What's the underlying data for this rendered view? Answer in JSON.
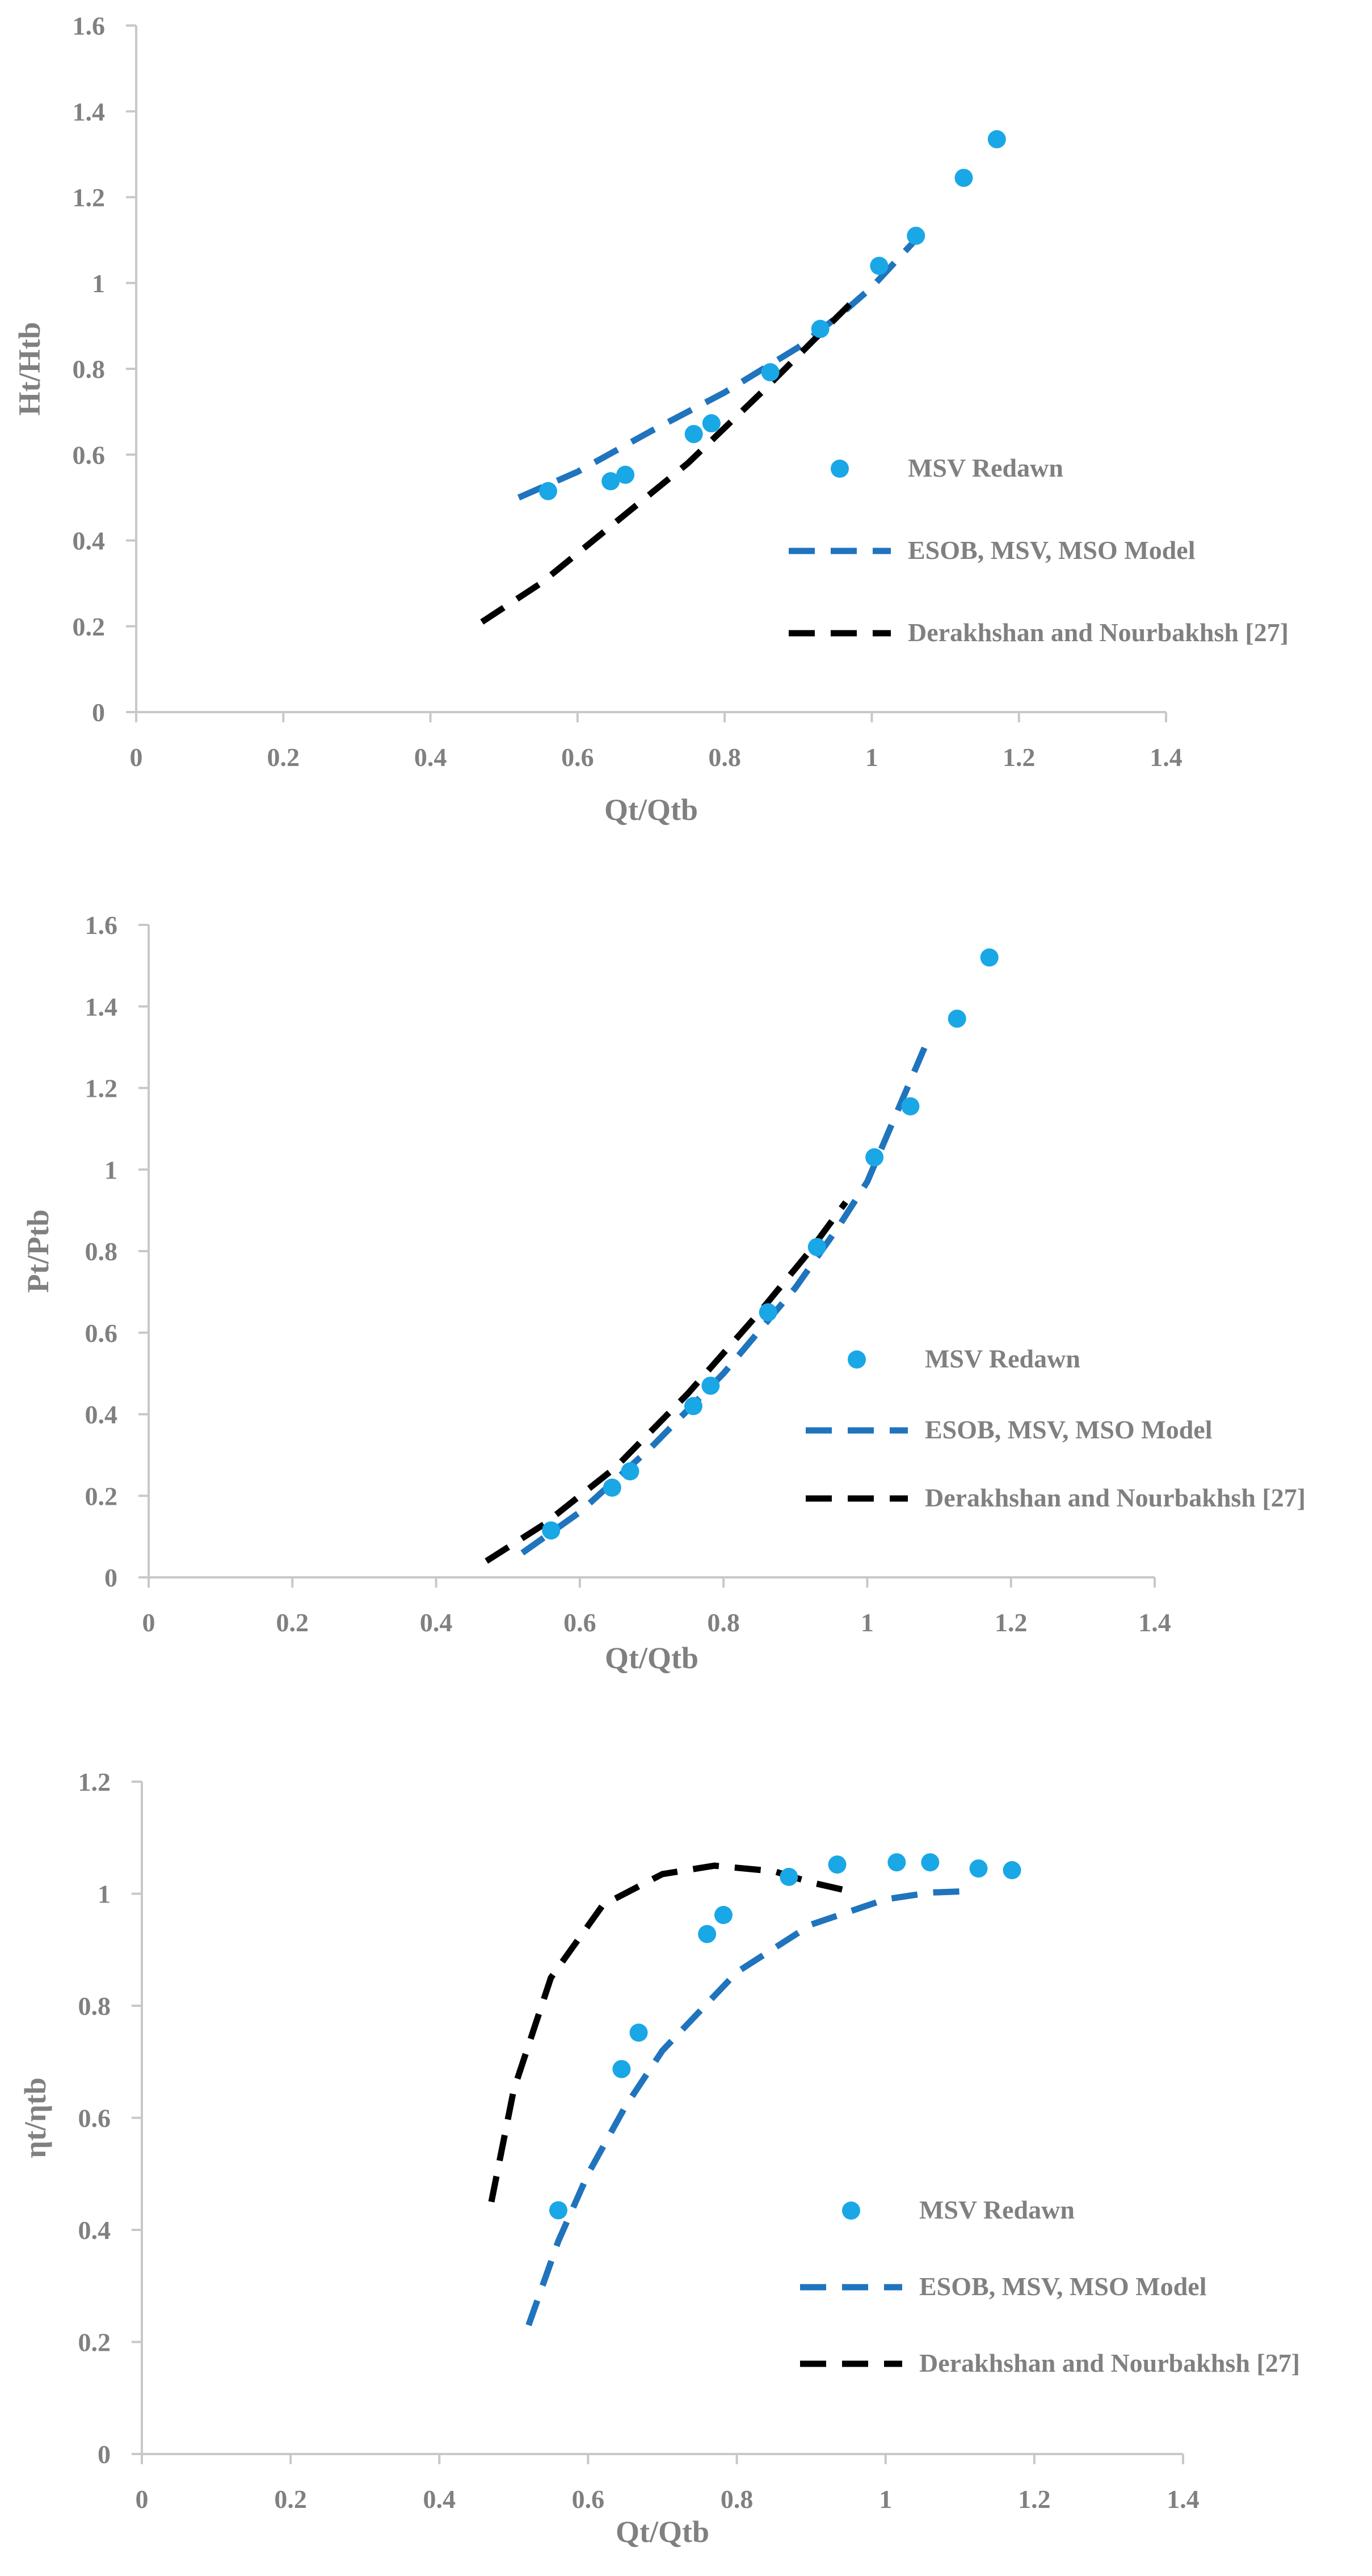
{
  "colors": {
    "points": "#1AA7E6",
    "model_line": "#1F74BD",
    "reference_line": "#000000",
    "axis": "#c8c8c8",
    "text": "#808080"
  },
  "legend": {
    "points": "MSV Redawn",
    "model": "ESOB, MSV, MSO Model",
    "reference": "Derakhshan and Nourbakhsh [27]"
  },
  "chart_data": [
    {
      "type": "scatter",
      "title": "",
      "xlabel": "Qt/Qtb",
      "ylabel": "Ht/Htb",
      "xlim": [
        0,
        1.4
      ],
      "ylim": [
        0,
        1.6
      ],
      "xticks": [
        "0",
        "0.2",
        "0.4",
        "0.6",
        "0.8",
        "1",
        "1.2",
        "1.4"
      ],
      "yticks": [
        "0",
        "0.2",
        "0.4",
        "0.6",
        "0.8",
        "1",
        "1.2",
        "1.4",
        "1.6"
      ],
      "series": [
        {
          "name": "MSV Redawn",
          "kind": "points",
          "x": [
            0.56,
            0.645,
            0.665,
            0.758,
            0.782,
            0.862,
            0.93,
            1.01,
            1.06,
            1.125,
            1.17
          ],
          "y": [
            0.515,
            0.538,
            0.553,
            0.648,
            0.673,
            0.792,
            0.893,
            1.04,
            1.11,
            1.245,
            1.335
          ]
        },
        {
          "name": "ESOB, MSV, MSO Model",
          "kind": "line",
          "x": [
            0.52,
            0.6,
            0.7,
            0.8,
            0.9,
            0.96,
            1.0,
            1.07
          ],
          "y": [
            0.5,
            0.56,
            0.655,
            0.745,
            0.85,
            0.93,
            0.99,
            1.12
          ]
        },
        {
          "name": "Derakhshan and Nourbakhsh [27]",
          "kind": "line",
          "x": [
            0.47,
            0.55,
            0.65,
            0.75,
            0.85,
            0.92,
            0.97
          ],
          "y": [
            0.21,
            0.3,
            0.44,
            0.58,
            0.745,
            0.865,
            0.95
          ]
        }
      ]
    },
    {
      "type": "scatter",
      "title": "",
      "xlabel": "Qt/Qtb",
      "ylabel": "Pt/Ptb",
      "xlim": [
        0,
        1.4
      ],
      "ylim": [
        0,
        1.6
      ],
      "xticks": [
        "0",
        "0.2",
        "0.4",
        "0.6",
        "0.8",
        "1",
        "1.2",
        "1.4"
      ],
      "yticks": [
        "0",
        "0.2",
        "0.4",
        "0.6",
        "0.8",
        "1",
        "1.2",
        "1.4",
        "1.6"
      ],
      "series": [
        {
          "name": "MSV Redawn",
          "kind": "points",
          "x": [
            0.56,
            0.645,
            0.67,
            0.758,
            0.782,
            0.862,
            0.93,
            1.01,
            1.06,
            1.125,
            1.17
          ],
          "y": [
            0.115,
            0.22,
            0.26,
            0.42,
            0.47,
            0.65,
            0.81,
            1.03,
            1.155,
            1.37,
            1.52
          ]
        },
        {
          "name": "ESOB, MSV, MSO Model",
          "kind": "line",
          "x": [
            0.52,
            0.6,
            0.7,
            0.8,
            0.9,
            0.96,
            1.0,
            1.08
          ],
          "y": [
            0.06,
            0.16,
            0.32,
            0.5,
            0.71,
            0.86,
            0.97,
            1.3
          ]
        },
        {
          "name": "Derakhshan and Nourbakhsh [27]",
          "kind": "line",
          "x": [
            0.47,
            0.55,
            0.65,
            0.75,
            0.85,
            0.92,
            0.97
          ],
          "y": [
            0.04,
            0.13,
            0.27,
            0.45,
            0.65,
            0.8,
            0.92
          ]
        }
      ]
    },
    {
      "type": "scatter",
      "title": "",
      "xlabel": "Qt/Qtb",
      "ylabel": "ηt/ηtb",
      "xlim": [
        0,
        1.4
      ],
      "ylim": [
        0,
        1.2
      ],
      "xticks": [
        "0",
        "0.2",
        "0.4",
        "0.6",
        "0.8",
        "1",
        "1.2",
        "1.4"
      ],
      "yticks": [
        "0",
        "0.2",
        "0.4",
        "0.6",
        "0.8",
        "1",
        "1.2"
      ],
      "series": [
        {
          "name": "MSV Redawn",
          "kind": "points",
          "x": [
            0.56,
            0.645,
            0.668,
            0.76,
            0.782,
            0.87,
            0.935,
            1.015,
            1.06,
            1.125,
            1.17
          ],
          "y": [
            0.435,
            0.687,
            0.752,
            0.928,
            0.962,
            1.03,
            1.052,
            1.056,
            1.056,
            1.045,
            1.042
          ]
        },
        {
          "name": "ESOB, MSV, MSO Model",
          "kind": "line",
          "x": [
            0.52,
            0.56,
            0.6,
            0.65,
            0.7,
            0.8,
            0.9,
            1.0,
            1.06,
            1.12
          ],
          "y": [
            0.23,
            0.38,
            0.5,
            0.62,
            0.72,
            0.86,
            0.945,
            0.99,
            1.002,
            1.005
          ]
        },
        {
          "name": "Derakhshan and Nourbakhsh [27]",
          "kind": "line",
          "x": [
            0.47,
            0.5,
            0.55,
            0.62,
            0.7,
            0.77,
            0.85,
            0.9,
            0.95
          ],
          "y": [
            0.45,
            0.65,
            0.85,
            0.98,
            1.035,
            1.05,
            1.04,
            1.02,
            1.005
          ]
        }
      ]
    }
  ]
}
